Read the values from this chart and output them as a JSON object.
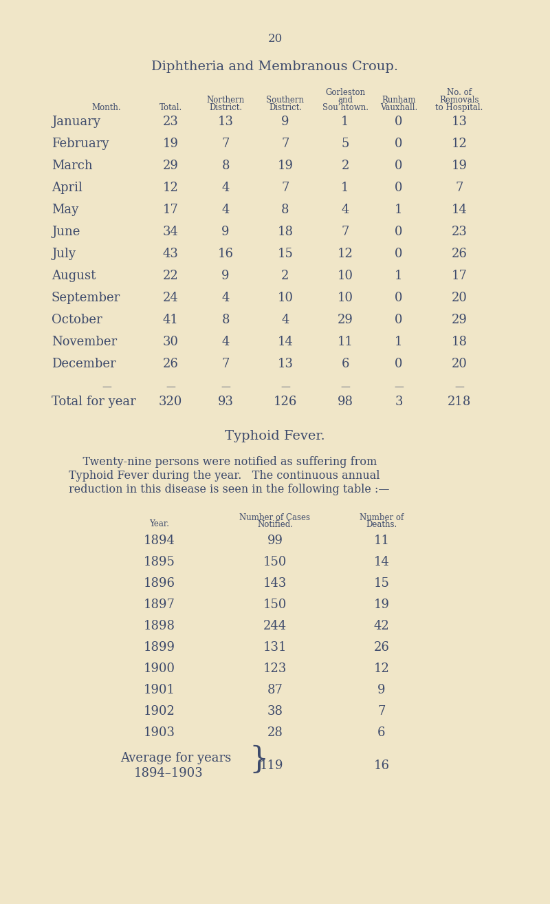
{
  "bg_color": "#f0e6c8",
  "text_color": "#3d4a6b",
  "page_number": "20",
  "title1": "Diphtheria and Membranous Croup.",
  "table1_rows": [
    [
      "January",
      "23",
      "13",
      "9",
      "1",
      "0",
      "13"
    ],
    [
      "February",
      "19",
      "7",
      "7",
      "5",
      "0",
      "12"
    ],
    [
      "March",
      "29",
      "8",
      "19",
      "2",
      "0",
      "19"
    ],
    [
      "April",
      "12",
      "4",
      "7",
      "1",
      "0",
      "7"
    ],
    [
      "May",
      "17",
      "4",
      "8",
      "4",
      "1",
      "14"
    ],
    [
      "June",
      "34",
      "9",
      "18",
      "7",
      "0",
      "23"
    ],
    [
      "July",
      "43",
      "16",
      "15",
      "12",
      "0",
      "26"
    ],
    [
      "August",
      "22",
      "9",
      "2",
      "10",
      "1",
      "17"
    ],
    [
      "September",
      "24",
      "4",
      "10",
      "10",
      "0",
      "20"
    ],
    [
      "October",
      "41",
      "8",
      "4",
      "29",
      "0",
      "29"
    ],
    [
      "November",
      "30",
      "4",
      "14",
      "11",
      "1",
      "18"
    ],
    [
      "December",
      "26",
      "7",
      "13",
      "6",
      "0",
      "20"
    ]
  ],
  "table1_total_row": [
    "320",
    "93",
    "126",
    "98",
    "3",
    "218"
  ],
  "typhoid_title": "Typhoid Fever.",
  "table2_rows": [
    [
      "1894",
      "99",
      "11"
    ],
    [
      "1895",
      "150",
      "14"
    ],
    [
      "1896",
      "143",
      "15"
    ],
    [
      "1897",
      "150",
      "19"
    ],
    [
      "1898",
      "244",
      "42"
    ],
    [
      "1899",
      "131",
      "26"
    ],
    [
      "1900",
      "123",
      "12"
    ],
    [
      "1901",
      "87",
      "9"
    ],
    [
      "1902",
      "38",
      "7"
    ],
    [
      "1903",
      "28",
      "6"
    ]
  ],
  "table2_avg_value": "119",
  "table2_avg_deaths": "16"
}
